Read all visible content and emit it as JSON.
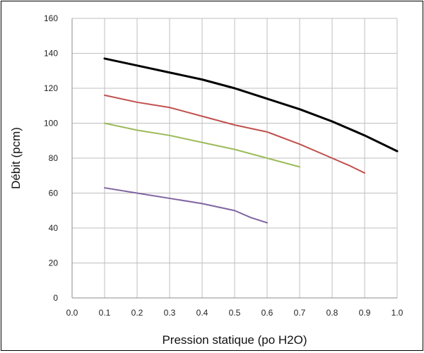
{
  "chart_data": {
    "type": "line",
    "title": "",
    "xlabel": "Pression statique (po H2O)",
    "ylabel": "Débit (pcm)",
    "xlim": [
      0.0,
      1.0
    ],
    "ylim": [
      0,
      160
    ],
    "x_ticks": [
      "0.0",
      "0.1",
      "0.2",
      "0.3",
      "0.4",
      "0.5",
      "0.6",
      "0.7",
      "0.8",
      "0.9",
      "1.0"
    ],
    "y_ticks": [
      "0",
      "20",
      "40",
      "60",
      "80",
      "100",
      "120",
      "140",
      "160"
    ],
    "grid": true,
    "legend": "none",
    "series": [
      {
        "color": "#000000",
        "points": [
          [
            0.1,
            137
          ],
          [
            0.2,
            133
          ],
          [
            0.3,
            129
          ],
          [
            0.4,
            125
          ],
          [
            0.5,
            120
          ],
          [
            0.6,
            114
          ],
          [
            0.7,
            108
          ],
          [
            0.8,
            101
          ],
          [
            0.9,
            93
          ],
          [
            1.0,
            84
          ]
        ]
      },
      {
        "color": "#c0504d",
        "points": [
          [
            0.1,
            116
          ],
          [
            0.2,
            112
          ],
          [
            0.3,
            109
          ],
          [
            0.4,
            104
          ],
          [
            0.5,
            99
          ],
          [
            0.6,
            95
          ],
          [
            0.7,
            88
          ],
          [
            0.8,
            80
          ],
          [
            0.85,
            76
          ],
          [
            0.9,
            71.5
          ]
        ]
      },
      {
        "color": "#9bbb59",
        "points": [
          [
            0.1,
            100
          ],
          [
            0.2,
            96
          ],
          [
            0.3,
            93
          ],
          [
            0.4,
            89
          ],
          [
            0.5,
            85
          ],
          [
            0.6,
            80
          ],
          [
            0.7,
            75
          ]
        ]
      },
      {
        "color": "#8064a2",
        "points": [
          [
            0.1,
            63
          ],
          [
            0.2,
            60
          ],
          [
            0.3,
            57
          ],
          [
            0.4,
            54
          ],
          [
            0.5,
            50
          ],
          [
            0.55,
            46
          ],
          [
            0.6,
            43
          ]
        ]
      }
    ]
  }
}
